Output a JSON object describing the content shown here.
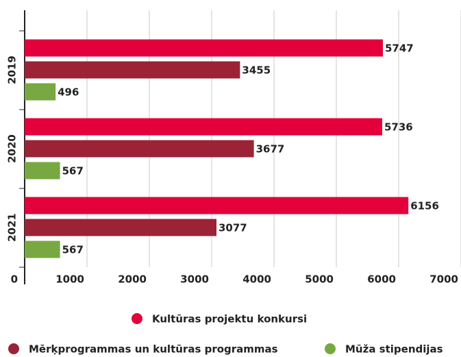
{
  "chart_data": {
    "type": "bar",
    "orientation": "horizontal",
    "categories": [
      "2019",
      "2020",
      "2021"
    ],
    "series": [
      {
        "name": "Kultūras projektu konkursi",
        "color": "#e4003a",
        "values": [
          5747,
          5736,
          6156
        ]
      },
      {
        "name": "Mērķprogrammas un kultūras programmas",
        "color": "#9b2335",
        "values": [
          3455,
          3677,
          3077
        ]
      },
      {
        "name": "Mūža stipendijas",
        "color": "#78a842",
        "values": [
          496,
          567,
          567
        ]
      }
    ],
    "xlim": [
      0,
      7000
    ],
    "xticks": [
      0,
      1000,
      2000,
      3000,
      4000,
      5000,
      6000,
      7000
    ],
    "grid": true
  }
}
